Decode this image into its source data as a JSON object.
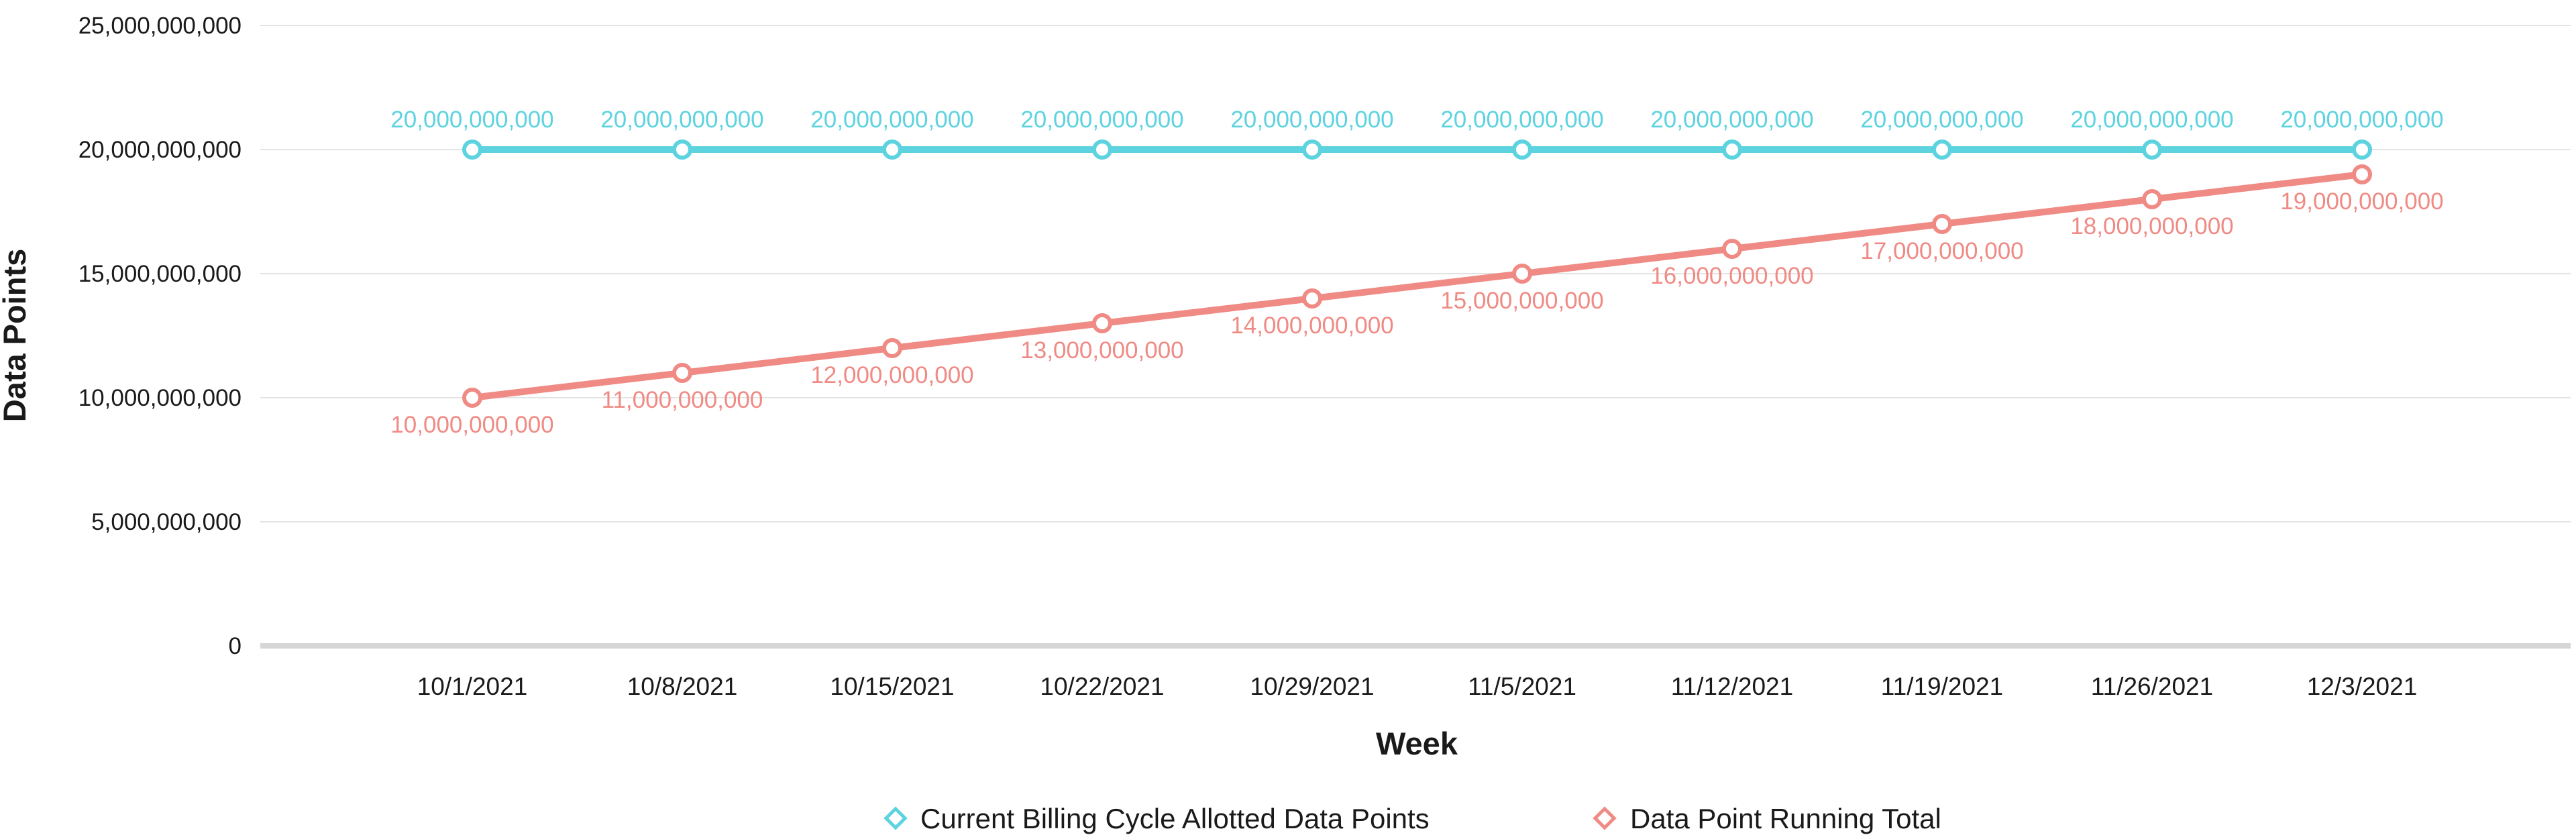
{
  "chart_data": {
    "type": "line",
    "title": "",
    "xlabel": "Week",
    "ylabel": "Data Points",
    "categories": [
      "10/1/2021",
      "10/8/2021",
      "10/15/2021",
      "10/22/2021",
      "10/29/2021",
      "11/5/2021",
      "11/12/2021",
      "11/19/2021",
      "11/26/2021",
      "12/3/2021"
    ],
    "ylim": [
      0,
      25000000000
    ],
    "yticks": [
      0,
      5000000000,
      10000000000,
      15000000000,
      20000000000,
      25000000000
    ],
    "ytick_labels": [
      "0",
      "5,000,000,000",
      "10,000,000,000",
      "15,000,000,000",
      "20,000,000,000",
      "25,000,000,000"
    ],
    "grid": true,
    "legend_position": "bottom",
    "series": [
      {
        "name": "Current Billing Cycle Allotted Data Points",
        "color": "#5dd3df",
        "label_position": "above",
        "values": [
          20000000000,
          20000000000,
          20000000000,
          20000000000,
          20000000000,
          20000000000,
          20000000000,
          20000000000,
          20000000000,
          20000000000
        ],
        "value_labels": [
          "20,000,000,000",
          "20,000,000,000",
          "20,000,000,000",
          "20,000,000,000",
          "20,000,000,000",
          "20,000,000,000",
          "20,000,000,000",
          "20,000,000,000",
          "20,000,000,000",
          "20,000,000,000"
        ]
      },
      {
        "name": "Data Point Running Total",
        "color": "#f08a84",
        "label_position": "below",
        "values": [
          10000000000,
          11000000000,
          12000000000,
          13000000000,
          14000000000,
          15000000000,
          16000000000,
          17000000000,
          18000000000,
          19000000000
        ],
        "value_labels": [
          "10,000,000,000",
          "11,000,000,000",
          "12,000,000,000",
          "13,000,000,000",
          "14,000,000,000",
          "15,000,000,000",
          "16,000,000,000",
          "17,000,000,000",
          "18,000,000,000",
          "19,000,000,000"
        ]
      }
    ]
  }
}
